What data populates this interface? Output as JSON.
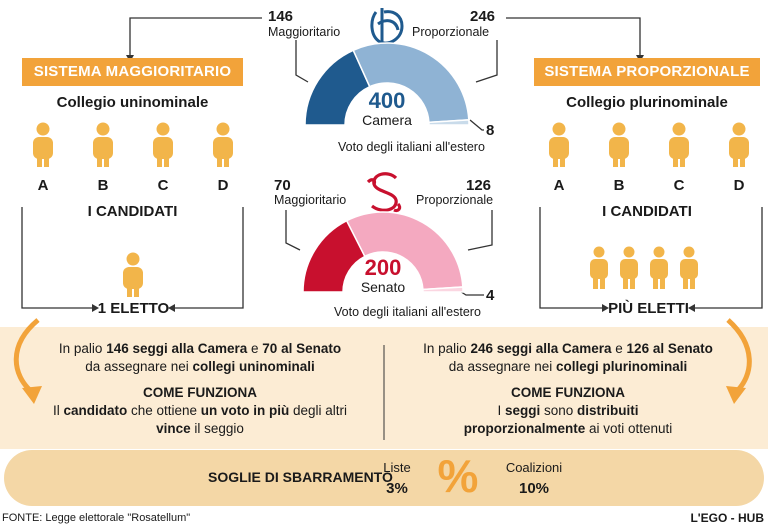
{
  "left": {
    "banner": "SISTEMA MAGGIORITARIO",
    "college": "Collegio uninominale",
    "letters": [
      "A",
      "B",
      "C",
      "D"
    ],
    "candidates": "I CANDIDATI",
    "elected": "1 ELETTO",
    "panel": {
      "line1_pre": "In palio ",
      "line1_b1": "146 seggi alla Camera",
      "line1_mid": " e ",
      "line1_b2": "70 al Senato",
      "line2_pre": "da assegnare nei ",
      "line2_b": "collegi uninominali",
      "how_title": "COME FUNZIONA",
      "how1_pre": "Il ",
      "how1_b1": "candidato",
      "how1_mid": " che ottiene ",
      "how1_b2": "un voto in più",
      "how1_post": " degli altri",
      "how2_b": "vince",
      "how2_post": " il seggio"
    }
  },
  "right": {
    "banner": "SISTEMA PROPORZIONALE",
    "college": "Collegio plurinominale",
    "letters": [
      "A",
      "B",
      "C",
      "D"
    ],
    "candidates": "I CANDIDATI",
    "elected": "PIÙ ELETTI",
    "panel": {
      "line1_pre": "In palio ",
      "line1_b1": "246 seggi alla Camera",
      "line1_mid": " e ",
      "line1_b2": "126 al Senato",
      "line2_pre": "da assegnare nei ",
      "line2_b": "collegi plurinominali",
      "how_title": "COME FUNZIONA",
      "how1_pre": "I ",
      "how1_b1": "seggi",
      "how1_mid": " sono ",
      "how1_b2": "distribuiti",
      "how2_b": "proporzionalmente",
      "how2_post": " ai voti ottenuti"
    }
  },
  "camera": {
    "total": "400",
    "name": "Camera",
    "maj_value": "146",
    "maj_label": "Maggioritario",
    "prop_value": "246",
    "prop_label": "Proporzionale",
    "abroad_value": "8",
    "abroad_label": "Voto degli italiani all'estero",
    "seats": {
      "maggioritario": 146,
      "proporzionale": 246,
      "estero": 8
    },
    "colors": {
      "maggioritario": "#1f5a8e",
      "proporzionale": "#8fb3d4",
      "estero": "#c9dbea"
    }
  },
  "senato": {
    "total": "200",
    "name": "Senato",
    "maj_value": "70",
    "maj_label": "Maggioritario",
    "prop_value": "126",
    "prop_label": "Proporzionale",
    "abroad_value": "4",
    "abroad_label": "Voto degli italiani all'estero",
    "seats": {
      "maggioritario": 70,
      "proporzionale": 126,
      "estero": 4
    },
    "colors": {
      "maggioritario": "#c8102e",
      "proporzionale": "#f4a9c0",
      "estero": "#fbd6e1"
    }
  },
  "threshold": {
    "title": "SOGLIE DI SBARRAMENTO",
    "liste_label": "Liste",
    "liste_value": "3%",
    "symbol": "%",
    "coal_label": "Coalizioni",
    "coal_value": "10%"
  },
  "footer": {
    "source": "FONTE: Legge elettorale \"Rosatellum\"",
    "credit": "L'EGO - HUB"
  },
  "colors": {
    "accent": "#f2a33a",
    "panel": "#fcecd4",
    "person": "#f2b54a",
    "band": "#f4d7a6"
  }
}
